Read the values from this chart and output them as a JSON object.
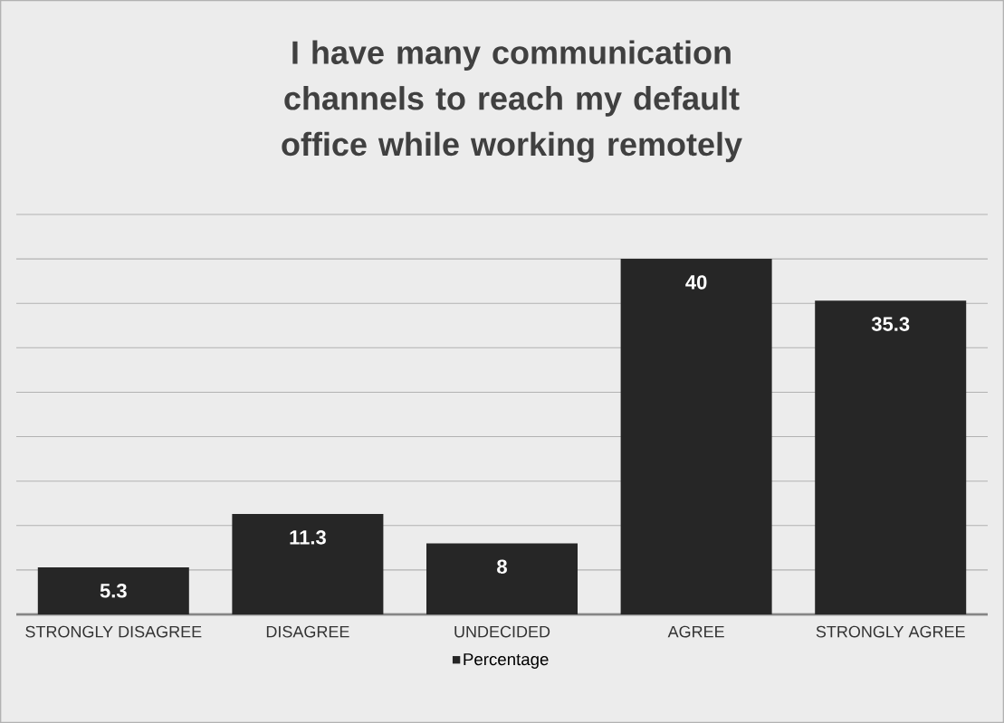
{
  "chart_data": {
    "type": "bar",
    "title": "I have many communication channels to reach my default office while working remotely",
    "categories": [
      "STRONGLY DISAGREE",
      "DISAGREE",
      "UNDECIDED",
      "AGREE",
      "STRONGLY AGREE"
    ],
    "series": [
      {
        "name": "Percentage",
        "color": "#262626",
        "values": [
          5.3,
          11.3,
          8,
          40,
          35.3
        ]
      }
    ],
    "ylim": [
      0,
      45
    ],
    "yticks": [
      {
        "value": 0,
        "label": null
      },
      {
        "value": 5,
        "label": null
      },
      {
        "value": 10,
        "label": null
      },
      {
        "value": 15,
        "label": null
      },
      {
        "value": 20,
        "label": null
      },
      {
        "value": 25,
        "label": null
      },
      {
        "value": 30,
        "label": null
      },
      {
        "value": 35,
        "label": null
      },
      {
        "value": 40,
        "label": null
      },
      {
        "value": 45,
        "label": null
      }
    ],
    "grid": "y",
    "tick_labels": "x",
    "data_labels": true,
    "legend": "bottom"
  }
}
